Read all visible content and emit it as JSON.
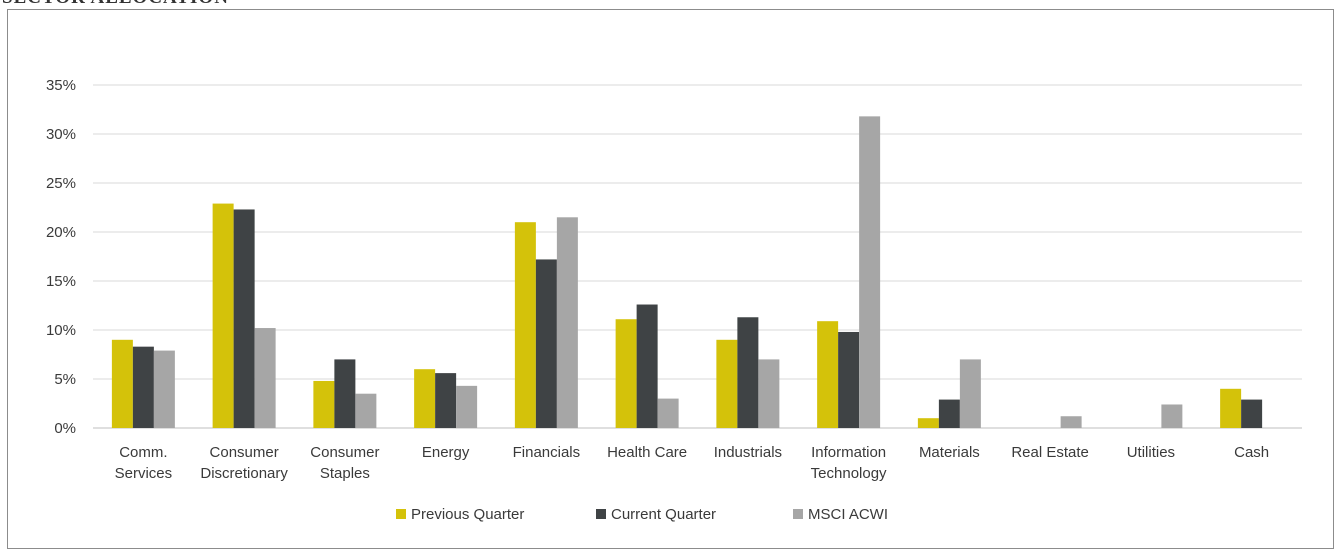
{
  "title": "SECTOR ALLOCATION",
  "chart_data": {
    "type": "bar",
    "categories": [
      [
        "Comm.",
        "Services"
      ],
      [
        "Consumer",
        "Discretionary"
      ],
      [
        "Consumer",
        "Staples"
      ],
      [
        "Energy"
      ],
      [
        "Financials"
      ],
      [
        "Health Care"
      ],
      [
        "Industrials"
      ],
      [
        "Information",
        "Technology"
      ],
      [
        "Materials"
      ],
      [
        "Real Estate"
      ],
      [
        "Utilities"
      ],
      [
        "Cash"
      ]
    ],
    "series": [
      {
        "name": "Previous Quarter",
        "color": "#d4c20a",
        "values": [
          9.0,
          22.9,
          4.8,
          6.0,
          21.0,
          11.1,
          9.0,
          10.9,
          1.0,
          null,
          null,
          4.0
        ]
      },
      {
        "name": "Current Quarter",
        "color": "#3f4345",
        "values": [
          8.3,
          22.3,
          7.0,
          5.6,
          17.2,
          12.6,
          11.3,
          9.8,
          2.9,
          null,
          null,
          2.9
        ]
      },
      {
        "name": "MSCI ACWI",
        "color": "#a6a6a6",
        "values": [
          7.9,
          10.2,
          3.5,
          4.3,
          21.5,
          3.0,
          7.0,
          31.8,
          7.0,
          1.2,
          2.4,
          null
        ]
      }
    ],
    "yticks": [
      "0%",
      "5%",
      "10%",
      "15%",
      "20%",
      "25%",
      "30%",
      "35%"
    ],
    "ylim": [
      0,
      35
    ],
    "grid": true,
    "legend_position": "bottom"
  }
}
